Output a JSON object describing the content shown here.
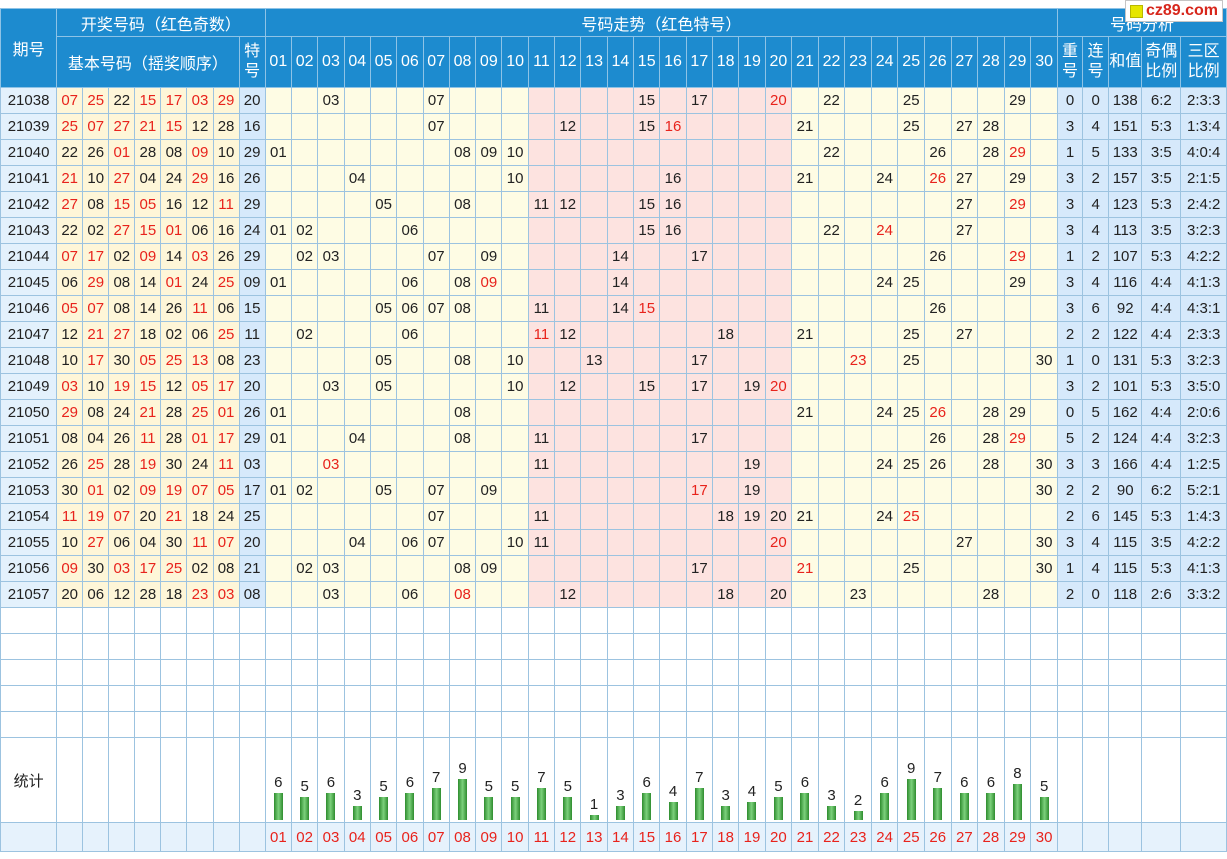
{
  "site_logo": "cz89.com",
  "header": {
    "period_label": "期号",
    "draw_group_label": "开奖号码（红色奇数）",
    "basic_numbers_label": "基本号码（摇奖顺序）",
    "special_label": "特号",
    "trend_label": "号码走势（红色特号）",
    "analysis_label": "号码分析",
    "repeat_label": "重号",
    "consecutive_label": "连号",
    "sum_label": "和值",
    "odd_even_label": "奇偶比例",
    "zone_label": "三区比例"
  },
  "number_labels": [
    "01",
    "02",
    "03",
    "04",
    "05",
    "06",
    "07",
    "08",
    "09",
    "10",
    "11",
    "12",
    "13",
    "14",
    "15",
    "16",
    "17",
    "18",
    "19",
    "20",
    "21",
    "22",
    "23",
    "24",
    "25",
    "26",
    "27",
    "28",
    "29",
    "30"
  ],
  "rows": [
    {
      "period": "21038",
      "basic": [
        "07",
        "25",
        "22",
        "15",
        "17",
        "03",
        "29"
      ],
      "special": "20",
      "repeat": "0",
      "consec": "0",
      "sum": "138",
      "odd_even": "6:2",
      "zones": "2:3:3"
    },
    {
      "period": "21039",
      "basic": [
        "25",
        "07",
        "27",
        "21",
        "15",
        "12",
        "28"
      ],
      "special": "16",
      "repeat": "3",
      "consec": "4",
      "sum": "151",
      "odd_even": "5:3",
      "zones": "1:3:4"
    },
    {
      "period": "21040",
      "basic": [
        "22",
        "26",
        "01",
        "28",
        "08",
        "09",
        "10"
      ],
      "special": "29",
      "repeat": "1",
      "consec": "5",
      "sum": "133",
      "odd_even": "3:5",
      "zones": "4:0:4"
    },
    {
      "period": "21041",
      "basic": [
        "21",
        "10",
        "27",
        "04",
        "24",
        "29",
        "16"
      ],
      "special": "26",
      "repeat": "3",
      "consec": "2",
      "sum": "157",
      "odd_even": "3:5",
      "zones": "2:1:5"
    },
    {
      "period": "21042",
      "basic": [
        "27",
        "08",
        "15",
        "05",
        "16",
        "12",
        "11"
      ],
      "special": "29",
      "repeat": "3",
      "consec": "4",
      "sum": "123",
      "odd_even": "5:3",
      "zones": "2:4:2"
    },
    {
      "period": "21043",
      "basic": [
        "22",
        "02",
        "27",
        "15",
        "01",
        "06",
        "16"
      ],
      "special": "24",
      "repeat": "3",
      "consec": "4",
      "sum": "113",
      "odd_even": "3:5",
      "zones": "3:2:3"
    },
    {
      "period": "21044",
      "basic": [
        "07",
        "17",
        "02",
        "09",
        "14",
        "03",
        "26"
      ],
      "special": "29",
      "repeat": "1",
      "consec": "2",
      "sum": "107",
      "odd_even": "5:3",
      "zones": "4:2:2"
    },
    {
      "period": "21045",
      "basic": [
        "06",
        "29",
        "08",
        "14",
        "01",
        "24",
        "25"
      ],
      "special": "09",
      "repeat": "3",
      "consec": "4",
      "sum": "116",
      "odd_even": "4:4",
      "zones": "4:1:3"
    },
    {
      "period": "21046",
      "basic": [
        "05",
        "07",
        "08",
        "14",
        "26",
        "11",
        "06"
      ],
      "special": "15",
      "repeat": "3",
      "consec": "6",
      "sum": "92",
      "odd_even": "4:4",
      "zones": "4:3:1"
    },
    {
      "period": "21047",
      "basic": [
        "12",
        "21",
        "27",
        "18",
        "02",
        "06",
        "25"
      ],
      "special": "11",
      "repeat": "2",
      "consec": "2",
      "sum": "122",
      "odd_even": "4:4",
      "zones": "2:3:3"
    },
    {
      "period": "21048",
      "basic": [
        "10",
        "17",
        "30",
        "05",
        "25",
        "13",
        "08"
      ],
      "special": "23",
      "repeat": "1",
      "consec": "0",
      "sum": "131",
      "odd_even": "5:3",
      "zones": "3:2:3"
    },
    {
      "period": "21049",
      "basic": [
        "03",
        "10",
        "19",
        "15",
        "12",
        "05",
        "17"
      ],
      "special": "20",
      "repeat": "3",
      "consec": "2",
      "sum": "101",
      "odd_even": "5:3",
      "zones": "3:5:0"
    },
    {
      "period": "21050",
      "basic": [
        "29",
        "08",
        "24",
        "21",
        "28",
        "25",
        "01"
      ],
      "special": "26",
      "repeat": "0",
      "consec": "5",
      "sum": "162",
      "odd_even": "4:4",
      "zones": "2:0:6"
    },
    {
      "period": "21051",
      "basic": [
        "08",
        "04",
        "26",
        "11",
        "28",
        "01",
        "17"
      ],
      "special": "29",
      "repeat": "5",
      "consec": "2",
      "sum": "124",
      "odd_even": "4:4",
      "zones": "3:2:3"
    },
    {
      "period": "21052",
      "basic": [
        "26",
        "25",
        "28",
        "19",
        "30",
        "24",
        "11"
      ],
      "special": "03",
      "repeat": "3",
      "consec": "3",
      "sum": "166",
      "odd_even": "4:4",
      "zones": "1:2:5"
    },
    {
      "period": "21053",
      "basic": [
        "30",
        "01",
        "02",
        "09",
        "19",
        "07",
        "05"
      ],
      "special": "17",
      "repeat": "2",
      "consec": "2",
      "sum": "90",
      "odd_even": "6:2",
      "zones": "5:2:1"
    },
    {
      "period": "21054",
      "basic": [
        "11",
        "19",
        "07",
        "20",
        "21",
        "18",
        "24"
      ],
      "special": "25",
      "repeat": "2",
      "consec": "6",
      "sum": "145",
      "odd_even": "5:3",
      "zones": "1:4:3"
    },
    {
      "period": "21055",
      "basic": [
        "10",
        "27",
        "06",
        "04",
        "30",
        "11",
        "07"
      ],
      "special": "20",
      "repeat": "3",
      "consec": "4",
      "sum": "115",
      "odd_even": "3:5",
      "zones": "4:2:2"
    },
    {
      "period": "21056",
      "basic": [
        "09",
        "30",
        "03",
        "17",
        "25",
        "02",
        "08"
      ],
      "special": "21",
      "repeat": "1",
      "consec": "4",
      "sum": "115",
      "odd_even": "5:3",
      "zones": "4:1:3"
    },
    {
      "period": "21057",
      "basic": [
        "20",
        "06",
        "12",
        "28",
        "18",
        "23",
        "03"
      ],
      "special": "08",
      "repeat": "2",
      "consec": "0",
      "sum": "118",
      "odd_even": "2:6",
      "zones": "3:3:2"
    }
  ],
  "stats": {
    "label": "统计",
    "counts": [
      6,
      5,
      6,
      3,
      5,
      6,
      7,
      9,
      5,
      5,
      7,
      5,
      1,
      3,
      6,
      4,
      7,
      3,
      4,
      5,
      6,
      3,
      2,
      6,
      9,
      7,
      6,
      6,
      8,
      5
    ]
  },
  "colors": {
    "header_bg": "#1d8bcf",
    "basic_bg": "#fef6d8",
    "special_bg": "#d6e9fb",
    "trend_yellow": "#fefce4",
    "trend_pink": "#fde3e0",
    "odd_red": "#e8231c",
    "bar_green": "#3aa53a"
  }
}
